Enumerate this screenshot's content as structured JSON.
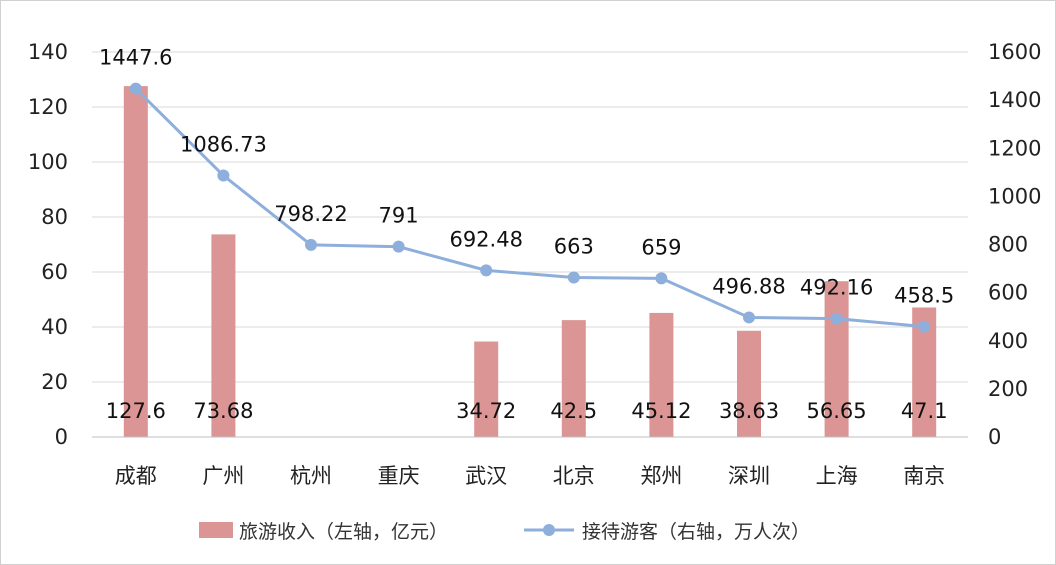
{
  "chart_data": {
    "type": "bar+line",
    "categories": [
      "成都",
      "广州",
      "杭州",
      "重庆",
      "武汉",
      "北京",
      "郑州",
      "深圳",
      "上海",
      "南京"
    ],
    "series": [
      {
        "name": "旅游收入（左轴，亿元）",
        "type": "bar",
        "axis": "left",
        "color": "#da9594",
        "values": [
          127.6,
          73.68,
          null,
          null,
          34.72,
          42.5,
          45.12,
          38.63,
          56.65,
          47.1
        ],
        "labels": [
          "127.6",
          "73.68",
          "",
          "",
          "34.72",
          "42.5",
          "45.12",
          "38.63",
          "56.65",
          "47.1"
        ]
      },
      {
        "name": "接待游客（右轴，万人次）",
        "type": "line",
        "axis": "right",
        "color": "#8eaedc",
        "values": [
          1447.6,
          1086.73,
          798.22,
          791,
          692.48,
          663,
          659,
          496.88,
          492.16,
          458.5
        ],
        "labels": [
          "1447.6",
          "1086.73",
          "798.22",
          "791",
          "692.48",
          "663",
          "659",
          "496.88",
          "492.16",
          "458.5"
        ]
      }
    ],
    "y_left": {
      "min": 0,
      "max": 140,
      "ticks": [
        0,
        20,
        40,
        60,
        80,
        100,
        120,
        140
      ]
    },
    "y_right": {
      "min": 0,
      "max": 1600,
      "ticks": [
        0,
        200,
        400,
        600,
        800,
        1000,
        1200,
        1400,
        1600
      ]
    },
    "grid": true,
    "legend": "bottom"
  }
}
